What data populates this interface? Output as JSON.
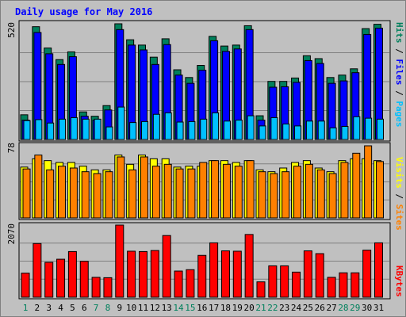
{
  "colors": {
    "background": "#c0c0c0",
    "title": "#0000ff",
    "hits": "#00805c",
    "files": "#0000ff",
    "pages": "#00c0ff",
    "visits": "#ffff00",
    "sites": "#ff8000",
    "kbytes": "#ff0000",
    "weekday": "#00805c",
    "weekend": "#408040"
  },
  "chart_data": [
    {
      "type": "bar",
      "title": "Daily usage for May 2016",
      "categories": [
        "1",
        "2",
        "3",
        "4",
        "5",
        "6",
        "7",
        "8",
        "9",
        "10",
        "11",
        "12",
        "13",
        "14",
        "15",
        "16",
        "17",
        "18",
        "19",
        "20",
        "21",
        "22",
        "23",
        "24",
        "25",
        "26",
        "27",
        "28",
        "29",
        "30",
        "31"
      ],
      "weekend_days": [
        "1",
        "7",
        "8",
        "14",
        "15",
        "21",
        "22",
        "28",
        "29"
      ],
      "ylim_label": "520",
      "legend": [
        "Pages",
        "Files",
        "Hits"
      ],
      "series": [
        {
          "name": "Hits",
          "values": [
            102,
            466,
            378,
            330,
            362,
            114,
            96,
            140,
            478,
            412,
            390,
            340,
            416,
            288,
            256,
            306,
            426,
            386,
            390,
            470,
            98,
            240,
            240,
            254,
            346,
            334,
            256,
            266,
            292,
            458,
            476
          ]
        },
        {
          "name": "Files",
          "values": [
            80,
            442,
            354,
            310,
            342,
            96,
            80,
            122,
            454,
            390,
            370,
            310,
            392,
            266,
            232,
            286,
            408,
            364,
            374,
            454,
            80,
            216,
            218,
            236,
            326,
            314,
            232,
            242,
            276,
            434,
            460
          ]
        },
        {
          "name": "Pages",
          "values": [
            78,
            82,
            68,
            84,
            90,
            84,
            84,
            52,
            134,
            70,
            74,
            104,
            110,
            72,
            74,
            84,
            110,
            76,
            80,
            98,
            56,
            90,
            64,
            56,
            76,
            76,
            48,
            54,
            94,
            88,
            84
          ]
        }
      ]
    },
    {
      "type": "bar",
      "ylim_label": "78",
      "legend": [
        "Sites",
        "Visits"
      ],
      "series": [
        {
          "name": "Visits",
          "values": [
            55,
            64,
            62,
            60,
            60,
            56,
            52,
            52,
            68,
            58,
            68,
            64,
            64,
            55,
            56,
            56,
            62,
            62,
            60,
            62,
            52,
            50,
            54,
            60,
            62,
            54,
            50,
            62,
            64,
            64,
            62
          ]
        },
        {
          "name": "Sites",
          "values": [
            53,
            68,
            52,
            56,
            54,
            50,
            48,
            50,
            66,
            52,
            66,
            56,
            58,
            53,
            53,
            60,
            62,
            58,
            56,
            62,
            50,
            48,
            50,
            56,
            58,
            52,
            48,
            60,
            70,
            78,
            61
          ]
        }
      ]
    },
    {
      "type": "bar",
      "ylim_label": "2070",
      "legend": [
        "KBytes"
      ],
      "series": [
        {
          "name": "KBytes",
          "values": [
            690,
            1540,
            1000,
            1090,
            1310,
            1030,
            570,
            560,
            2070,
            1320,
            1310,
            1340,
            1770,
            750,
            790,
            1200,
            1560,
            1330,
            1320,
            1800,
            440,
            900,
            900,
            720,
            1330,
            1250,
            570,
            700,
            700,
            1350,
            1560
          ]
        }
      ]
    }
  ]
}
